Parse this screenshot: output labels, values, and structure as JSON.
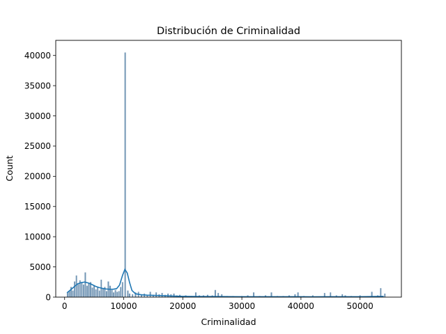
{
  "chart_data": {
    "type": "bar",
    "title": "Distribución de Criminalidad",
    "xlabel": "Criminalidad",
    "ylabel": "Count",
    "xlim": [
      -1500,
      57000
    ],
    "ylim": [
      0,
      42500
    ],
    "xticks": [
      0,
      10000,
      20000,
      30000,
      40000,
      50000
    ],
    "yticks": [
      0,
      5000,
      10000,
      15000,
      20000,
      25000,
      30000,
      35000,
      40000
    ],
    "grid": false,
    "legend": "none",
    "bar_color": "#4c79a0",
    "bar_edge_color": "#ffffff",
    "kde_color": "#1f77b4",
    "bin_width": 270,
    "histogram": [
      [
        500,
        700
      ],
      [
        800,
        1000
      ],
      [
        1100,
        1700
      ],
      [
        1400,
        1100
      ],
      [
        1700,
        2600
      ],
      [
        2000,
        3600
      ],
      [
        2300,
        2200
      ],
      [
        2600,
        2800
      ],
      [
        2900,
        2400
      ],
      [
        3200,
        2100
      ],
      [
        3500,
        4100
      ],
      [
        3800,
        1900
      ],
      [
        4100,
        2300
      ],
      [
        4400,
        2500
      ],
      [
        4700,
        1600
      ],
      [
        5000,
        2000
      ],
      [
        5300,
        1300
      ],
      [
        5600,
        1700
      ],
      [
        5900,
        1100
      ],
      [
        6200,
        2900
      ],
      [
        6500,
        1400
      ],
      [
        6800,
        1700
      ],
      [
        7100,
        1000
      ],
      [
        7400,
        2600
      ],
      [
        7700,
        1900
      ],
      [
        8000,
        1200
      ],
      [
        8300,
        800
      ],
      [
        8600,
        1200
      ],
      [
        8900,
        900
      ],
      [
        9200,
        1000
      ],
      [
        9500,
        1700
      ],
      [
        9800,
        2500
      ],
      [
        10250,
        40500
      ],
      [
        10700,
        1100
      ],
      [
        11000,
        600
      ],
      [
        11500,
        500
      ],
      [
        12000,
        800
      ],
      [
        12500,
        900
      ],
      [
        13000,
        500
      ],
      [
        13500,
        600
      ],
      [
        14000,
        400
      ],
      [
        14500,
        900
      ],
      [
        15000,
        400
      ],
      [
        15500,
        800
      ],
      [
        16000,
        500
      ],
      [
        16500,
        700
      ],
      [
        17000,
        400
      ],
      [
        17500,
        600
      ],
      [
        18000,
        500
      ],
      [
        18500,
        600
      ],
      [
        19000,
        300
      ],
      [
        19500,
        400
      ],
      [
        20500,
        300
      ],
      [
        21500,
        200
      ],
      [
        22200,
        800
      ],
      [
        22800,
        300
      ],
      [
        23500,
        300
      ],
      [
        24200,
        400
      ],
      [
        25000,
        300
      ],
      [
        25500,
        1200
      ],
      [
        26000,
        700
      ],
      [
        26600,
        500
      ],
      [
        27500,
        200
      ],
      [
        28500,
        200
      ],
      [
        30000,
        200
      ],
      [
        31000,
        300
      ],
      [
        32000,
        800
      ],
      [
        33000,
        200
      ],
      [
        34000,
        300
      ],
      [
        35000,
        800
      ],
      [
        36000,
        200
      ],
      [
        37000,
        200
      ],
      [
        38000,
        300
      ],
      [
        39000,
        500
      ],
      [
        39500,
        800
      ],
      [
        40500,
        200
      ],
      [
        42000,
        300
      ],
      [
        44000,
        700
      ],
      [
        45000,
        800
      ],
      [
        46000,
        300
      ],
      [
        47000,
        500
      ],
      [
        47500,
        300
      ],
      [
        48500,
        200
      ],
      [
        50000,
        300
      ],
      [
        52000,
        900
      ],
      [
        53000,
        300
      ],
      [
        53500,
        1500
      ],
      [
        54200,
        600
      ]
    ],
    "kde": [
      [
        400,
        700
      ],
      [
        1000,
        1200
      ],
      [
        1600,
        1700
      ],
      [
        2200,
        2200
      ],
      [
        2800,
        2400
      ],
      [
        3400,
        2500
      ],
      [
        4000,
        2350
      ],
      [
        4600,
        2100
      ],
      [
        5200,
        1800
      ],
      [
        5800,
        1600
      ],
      [
        6400,
        1450
      ],
      [
        7000,
        1350
      ],
      [
        7600,
        1300
      ],
      [
        8200,
        1300
      ],
      [
        8800,
        1400
      ],
      [
        9300,
        2000
      ],
      [
        9800,
        3600
      ],
      [
        10200,
        4600
      ],
      [
        10600,
        4000
      ],
      [
        11000,
        2400
      ],
      [
        11400,
        1100
      ],
      [
        12000,
        550
      ],
      [
        13000,
        380
      ],
      [
        14000,
        320
      ],
      [
        15000,
        300
      ],
      [
        16000,
        260
      ],
      [
        17000,
        220
      ],
      [
        18000,
        180
      ],
      [
        20000,
        130
      ],
      [
        22000,
        110
      ],
      [
        24000,
        100
      ],
      [
        26000,
        100
      ],
      [
        28000,
        80
      ],
      [
        30000,
        70
      ],
      [
        32000,
        70
      ],
      [
        34000,
        70
      ],
      [
        36000,
        60
      ],
      [
        38000,
        60
      ],
      [
        40000,
        60
      ],
      [
        42000,
        50
      ],
      [
        44000,
        60
      ],
      [
        46000,
        60
      ],
      [
        48000,
        60
      ],
      [
        50000,
        70
      ],
      [
        52000,
        90
      ],
      [
        54000,
        120
      ]
    ]
  }
}
